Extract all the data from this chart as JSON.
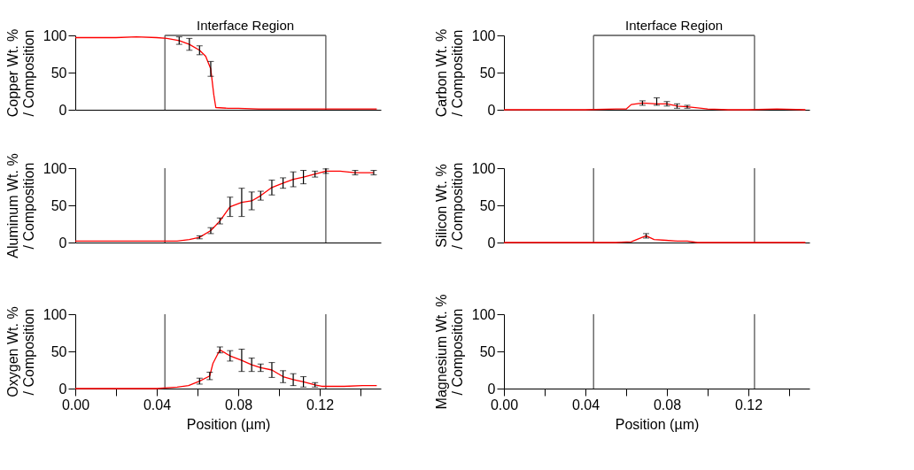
{
  "chart_data": [
    {
      "type": "line",
      "ylabel": "Copper Wt. %\n/ Composition",
      "xlim": [
        0,
        0.15
      ],
      "ylim": [
        0,
        100
      ],
      "yticks": [
        0,
        50,
        100
      ],
      "tick_labels": "y",
      "line_style": "solid",
      "ref_lines": [
        {
          "axis": "x",
          "value": 0.044,
          "color": "#555555"
        },
        {
          "axis": "x",
          "value": 0.123,
          "color": "#555555"
        }
      ],
      "annotations": [
        "Interface Region"
      ],
      "series": [
        {
          "color": "#ff0000",
          "x": [
            0,
            0.01,
            0.02,
            0.03,
            0.04,
            0.045,
            0.051,
            0.056,
            0.061,
            0.064,
            0.0665,
            0.068,
            0.069,
            0.075,
            0.08,
            0.09,
            0.1,
            0.11,
            0.12,
            0.13,
            0.14,
            0.148
          ],
          "values": [
            97,
            97,
            97,
            98,
            97,
            96,
            93,
            88,
            80,
            72,
            55,
            20,
            3,
            2,
            2,
            1,
            1,
            1,
            1,
            1,
            1,
            1
          ],
          "errors": [
            null,
            null,
            null,
            null,
            null,
            null,
            5,
            8,
            6,
            null,
            10,
            null,
            null,
            null,
            null,
            null,
            null,
            null,
            null,
            null,
            null,
            null
          ]
        }
      ]
    },
    {
      "type": "line",
      "ylabel": "Carbon Wt. %\n/ Composition",
      "xlim": [
        0,
        0.15
      ],
      "ylim": [
        0,
        100
      ],
      "yticks": [
        0,
        50,
        100
      ],
      "tick_labels": "y",
      "line_style": "solid",
      "ref_lines": [
        {
          "axis": "x",
          "value": 0.044,
          "color": "#555555"
        },
        {
          "axis": "x",
          "value": 0.123,
          "color": "#555555"
        }
      ],
      "annotations": [
        "Interface Region"
      ],
      "series": [
        {
          "color": "#ff0000",
          "x": [
            0,
            0.02,
            0.04,
            0.055,
            0.06,
            0.0625,
            0.068,
            0.075,
            0.08,
            0.085,
            0.09,
            0.1,
            0.11,
            0.12,
            0.134,
            0.148
          ],
          "values": [
            0,
            0,
            0,
            1,
            1,
            7,
            9,
            8,
            8,
            5,
            4,
            1,
            0,
            0,
            1,
            0
          ],
          "errors": [
            null,
            null,
            null,
            null,
            null,
            null,
            3,
            [
              6,
              16
            ],
            3,
            3,
            2,
            null,
            null,
            null,
            null,
            null
          ]
        }
      ]
    },
    {
      "type": "line",
      "ylabel": "Aluminum Wt. %\n/ Composition",
      "xlim": [
        0,
        0.15
      ],
      "ylim": [
        0,
        100
      ],
      "yticks": [
        0,
        50,
        100
      ],
      "tick_labels": "y",
      "line_style": "solid",
      "ref_lines": [
        {
          "axis": "x",
          "value": 0.044,
          "color": "#555555"
        },
        {
          "axis": "x",
          "value": 0.123,
          "color": "#555555"
        }
      ],
      "series": [
        {
          "color": "#ff0000",
          "x": [
            0,
            0.01,
            0.02,
            0.03,
            0.04,
            0.045,
            0.05,
            0.056,
            0.061,
            0.0665,
            0.071,
            0.076,
            0.0817,
            0.0866,
            0.091,
            0.0965,
            0.102,
            0.107,
            0.112,
            0.1177,
            0.123,
            0.13,
            0.1374,
            0.1465
          ],
          "values": [
            2,
            2,
            2,
            2,
            2,
            2,
            2,
            4,
            7,
            16,
            29,
            48,
            54,
            56,
            63,
            74,
            80,
            85,
            88,
            92,
            96,
            96,
            94,
            94
          ],
          "errors": [
            null,
            null,
            null,
            null,
            null,
            null,
            null,
            null,
            2,
            4,
            4,
            13,
            19,
            12,
            6,
            10,
            7,
            10,
            9,
            4,
            3,
            null,
            3,
            3
          ]
        }
      ]
    },
    {
      "type": "line",
      "ylabel": "Silicon Wt. %\n/ Composition",
      "xlim": [
        0,
        0.15
      ],
      "ylim": [
        0,
        100
      ],
      "yticks": [
        0,
        50,
        100
      ],
      "tick_labels": "y",
      "line_style": "solid",
      "ref_lines": [
        {
          "axis": "x",
          "value": 0.044,
          "color": "#555555"
        },
        {
          "axis": "x",
          "value": 0.123,
          "color": "#555555"
        }
      ],
      "series": [
        {
          "color": "#ff0000",
          "x": [
            0,
            0.02,
            0.04,
            0.055,
            0.0625,
            0.0698,
            0.0737,
            0.0795,
            0.085,
            0.09,
            0.095,
            0.11,
            0.13,
            0.148
          ],
          "values": [
            0,
            0,
            0,
            0,
            1,
            9,
            4,
            3,
            2,
            2,
            0,
            0,
            0,
            0
          ],
          "errors": [
            null,
            null,
            null,
            null,
            null,
            3,
            null,
            null,
            null,
            null,
            null,
            null,
            null,
            null
          ]
        }
      ]
    },
    {
      "type": "line",
      "ylabel": "Oxygen Wt. %\n/ Composition",
      "xlabel": "Position (µm)",
      "xlim": [
        0,
        0.15
      ],
      "ylim": [
        0,
        100
      ],
      "yticks": [
        0,
        50,
        100
      ],
      "xticks": [
        {
          "value": 0,
          "label": "0.00"
        },
        {
          "value": 0.02,
          "label": null
        },
        {
          "value": 0.04,
          "label": "0.04"
        },
        {
          "value": 0.06,
          "label": null
        },
        {
          "value": 0.08,
          "label": "0.08"
        },
        {
          "value": 0.1,
          "label": null
        },
        {
          "value": 0.12,
          "label": "0.12"
        },
        {
          "value": 0.14,
          "label": null
        }
      ],
      "line_style": "solid",
      "ref_lines": [
        {
          "axis": "x",
          "value": 0.044,
          "color": "#555555"
        },
        {
          "axis": "x",
          "value": 0.123,
          "color": "#555555"
        }
      ],
      "series": [
        {
          "color": "#ff0000",
          "x": [
            0,
            0.01,
            0.02,
            0.03,
            0.04,
            0.045,
            0.05,
            0.0556,
            0.061,
            0.066,
            0.0676,
            0.071,
            0.076,
            0.0817,
            0.0866,
            0.091,
            0.0965,
            0.102,
            0.107,
            0.112,
            0.1177,
            0.121,
            0.132,
            0.141,
            0.148
          ],
          "values": [
            0,
            0,
            0,
            0,
            0,
            1,
            2,
            4,
            10,
            17,
            34,
            52,
            44,
            38,
            32,
            28,
            25,
            16,
            12,
            9,
            5,
            3,
            3,
            4,
            4
          ],
          "errors": [
            null,
            null,
            null,
            null,
            null,
            null,
            null,
            null,
            4,
            5,
            null,
            4,
            7,
            15,
            9,
            5,
            10,
            8,
            8,
            7,
            3,
            null,
            null,
            null,
            null
          ]
        }
      ]
    },
    {
      "type": "line",
      "ylabel": "Magnesium Wt. %\n/ Composition",
      "xlabel": "Position (µm)",
      "xlim": [
        0,
        0.15
      ],
      "ylim": [
        0,
        100
      ],
      "yticks": [
        0,
        50,
        100
      ],
      "xticks": [
        {
          "value": 0,
          "label": "0.00"
        },
        {
          "value": 0.02,
          "label": null
        },
        {
          "value": 0.04,
          "label": "0.04"
        },
        {
          "value": 0.06,
          "label": null
        },
        {
          "value": 0.08,
          "label": "0.08"
        },
        {
          "value": 0.1,
          "label": null
        },
        {
          "value": 0.12,
          "label": "0.12"
        },
        {
          "value": 0.14,
          "label": null
        }
      ],
      "ref_lines": [
        {
          "axis": "x",
          "value": 0.044,
          "color": "#555555"
        },
        {
          "axis": "x",
          "value": 0.123,
          "color": "#555555"
        }
      ]
    }
  ]
}
